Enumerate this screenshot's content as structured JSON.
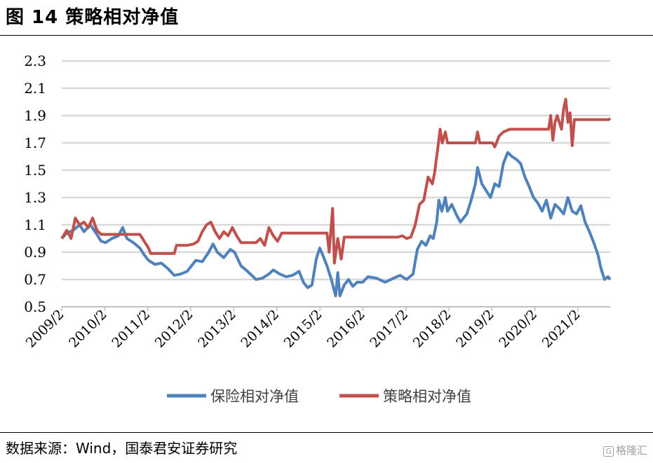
{
  "figure": {
    "title": "图 14  策略相对净值",
    "source": "数据来源：Wind，国泰君安证券研究",
    "watermark": "格隆汇",
    "watermark_mark": "G"
  },
  "chart_data": {
    "type": "line",
    "title": "",
    "xlabel": "",
    "ylabel": "",
    "ylim": [
      0.5,
      2.3
    ],
    "yticks": [
      0.5,
      0.7,
      0.9,
      1.1,
      1.3,
      1.5,
      1.7,
      1.9,
      2.1,
      2.3
    ],
    "xlim": [
      2009.083,
      2021.833
    ],
    "xticks": [
      {
        "x": 2009.083,
        "label": "2009/2"
      },
      {
        "x": 2010.083,
        "label": "2010/2"
      },
      {
        "x": 2011.083,
        "label": "2011/2"
      },
      {
        "x": 2012.083,
        "label": "2012/2"
      },
      {
        "x": 2013.083,
        "label": "2013/2"
      },
      {
        "x": 2014.083,
        "label": "2014/2"
      },
      {
        "x": 2015.083,
        "label": "2015/2"
      },
      {
        "x": 2016.083,
        "label": "2016/2"
      },
      {
        "x": 2017.083,
        "label": "2017/2"
      },
      {
        "x": 2018.083,
        "label": "2018/2"
      },
      {
        "x": 2019.083,
        "label": "2019/2"
      },
      {
        "x": 2020.083,
        "label": "2020/2"
      },
      {
        "x": 2021.083,
        "label": "2021/2"
      }
    ],
    "grid": true,
    "legend_position": "bottom-center",
    "series": [
      {
        "name": "保险相对净值",
        "color": "#4f81bd",
        "points": [
          [
            2009.083,
            1.0
          ],
          [
            2009.2,
            1.04
          ],
          [
            2009.35,
            1.06
          ],
          [
            2009.5,
            1.1
          ],
          [
            2009.6,
            1.05
          ],
          [
            2009.75,
            1.1
          ],
          [
            2009.9,
            1.03
          ],
          [
            2010.0,
            0.98
          ],
          [
            2010.1,
            0.97
          ],
          [
            2010.25,
            1.0
          ],
          [
            2010.4,
            1.02
          ],
          [
            2010.5,
            1.08
          ],
          [
            2010.6,
            1.0
          ],
          [
            2010.75,
            0.97
          ],
          [
            2010.9,
            0.93
          ],
          [
            2011.0,
            0.88
          ],
          [
            2011.1,
            0.84
          ],
          [
            2011.25,
            0.81
          ],
          [
            2011.4,
            0.82
          ],
          [
            2011.55,
            0.78
          ],
          [
            2011.7,
            0.73
          ],
          [
            2011.85,
            0.74
          ],
          [
            2012.0,
            0.76
          ],
          [
            2012.1,
            0.8
          ],
          [
            2012.2,
            0.84
          ],
          [
            2012.35,
            0.83
          ],
          [
            2012.5,
            0.9
          ],
          [
            2012.6,
            0.96
          ],
          [
            2012.7,
            0.9
          ],
          [
            2012.85,
            0.86
          ],
          [
            2013.0,
            0.92
          ],
          [
            2013.1,
            0.9
          ],
          [
            2013.25,
            0.8
          ],
          [
            2013.4,
            0.76
          ],
          [
            2013.5,
            0.73
          ],
          [
            2013.6,
            0.7
          ],
          [
            2013.75,
            0.71
          ],
          [
            2013.9,
            0.74
          ],
          [
            2014.0,
            0.77
          ],
          [
            2014.15,
            0.74
          ],
          [
            2014.3,
            0.72
          ],
          [
            2014.45,
            0.73
          ],
          [
            2014.6,
            0.76
          ],
          [
            2014.7,
            0.68
          ],
          [
            2014.8,
            0.64
          ],
          [
            2014.9,
            0.66
          ],
          [
            2015.0,
            0.85
          ],
          [
            2015.08,
            0.93
          ],
          [
            2015.15,
            0.88
          ],
          [
            2015.25,
            0.8
          ],
          [
            2015.35,
            0.7
          ],
          [
            2015.45,
            0.58
          ],
          [
            2015.5,
            0.75
          ],
          [
            2015.55,
            0.58
          ],
          [
            2015.65,
            0.66
          ],
          [
            2015.75,
            0.7
          ],
          [
            2015.85,
            0.65
          ],
          [
            2015.95,
            0.68
          ],
          [
            2016.08,
            0.68
          ],
          [
            2016.2,
            0.72
          ],
          [
            2016.4,
            0.71
          ],
          [
            2016.6,
            0.68
          ],
          [
            2016.8,
            0.71
          ],
          [
            2016.95,
            0.73
          ],
          [
            2017.1,
            0.7
          ],
          [
            2017.25,
            0.74
          ],
          [
            2017.35,
            0.92
          ],
          [
            2017.45,
            0.98
          ],
          [
            2017.55,
            0.95
          ],
          [
            2017.65,
            1.02
          ],
          [
            2017.72,
            1.0
          ],
          [
            2017.8,
            1.12
          ],
          [
            2017.85,
            1.28
          ],
          [
            2017.92,
            1.2
          ],
          [
            2018.0,
            1.3
          ],
          [
            2018.05,
            1.2
          ],
          [
            2018.15,
            1.25
          ],
          [
            2018.25,
            1.18
          ],
          [
            2018.35,
            1.12
          ],
          [
            2018.5,
            1.18
          ],
          [
            2018.6,
            1.28
          ],
          [
            2018.7,
            1.4
          ],
          [
            2018.75,
            1.52
          ],
          [
            2018.85,
            1.4
          ],
          [
            2018.95,
            1.35
          ],
          [
            2019.05,
            1.3
          ],
          [
            2019.15,
            1.4
          ],
          [
            2019.25,
            1.38
          ],
          [
            2019.35,
            1.55
          ],
          [
            2019.45,
            1.63
          ],
          [
            2019.55,
            1.6
          ],
          [
            2019.65,
            1.58
          ],
          [
            2019.75,
            1.55
          ],
          [
            2019.85,
            1.45
          ],
          [
            2019.95,
            1.38
          ],
          [
            2020.05,
            1.3
          ],
          [
            2020.15,
            1.26
          ],
          [
            2020.25,
            1.2
          ],
          [
            2020.35,
            1.28
          ],
          [
            2020.45,
            1.15
          ],
          [
            2020.55,
            1.25
          ],
          [
            2020.65,
            1.22
          ],
          [
            2020.75,
            1.18
          ],
          [
            2020.85,
            1.3
          ],
          [
            2020.95,
            1.2
          ],
          [
            2021.05,
            1.18
          ],
          [
            2021.15,
            1.24
          ],
          [
            2021.25,
            1.12
          ],
          [
            2021.35,
            1.05
          ],
          [
            2021.45,
            0.97
          ],
          [
            2021.55,
            0.88
          ],
          [
            2021.62,
            0.78
          ],
          [
            2021.7,
            0.7
          ],
          [
            2021.78,
            0.72
          ],
          [
            2021.833,
            0.7
          ]
        ]
      },
      {
        "name": "策略相对净值",
        "color": "#c0504d",
        "points": [
          [
            2009.083,
            1.0
          ],
          [
            2009.2,
            1.06
          ],
          [
            2009.3,
            1.0
          ],
          [
            2009.4,
            1.15
          ],
          [
            2009.5,
            1.1
          ],
          [
            2009.6,
            1.12
          ],
          [
            2009.7,
            1.08
          ],
          [
            2009.8,
            1.15
          ],
          [
            2009.9,
            1.06
          ],
          [
            2010.0,
            1.03
          ],
          [
            2010.3,
            1.03
          ],
          [
            2010.6,
            1.03
          ],
          [
            2010.9,
            1.03
          ],
          [
            2011.0,
            0.98
          ],
          [
            2011.1,
            0.93
          ],
          [
            2011.15,
            0.89
          ],
          [
            2011.5,
            0.89
          ],
          [
            2011.7,
            0.89
          ],
          [
            2011.75,
            0.95
          ],
          [
            2012.0,
            0.95
          ],
          [
            2012.15,
            0.96
          ],
          [
            2012.25,
            0.98
          ],
          [
            2012.35,
            1.05
          ],
          [
            2012.45,
            1.1
          ],
          [
            2012.55,
            1.12
          ],
          [
            2012.65,
            1.05
          ],
          [
            2012.75,
            1.0
          ],
          [
            2012.85,
            1.05
          ],
          [
            2012.95,
            1.02
          ],
          [
            2013.05,
            1.08
          ],
          [
            2013.15,
            1.02
          ],
          [
            2013.25,
            0.97
          ],
          [
            2013.4,
            0.97
          ],
          [
            2013.6,
            0.97
          ],
          [
            2013.7,
            1.0
          ],
          [
            2013.8,
            0.95
          ],
          [
            2013.9,
            1.08
          ],
          [
            2014.0,
            1.02
          ],
          [
            2014.1,
            0.98
          ],
          [
            2014.2,
            1.04
          ],
          [
            2014.5,
            1.04
          ],
          [
            2014.8,
            1.04
          ],
          [
            2015.0,
            1.04
          ],
          [
            2015.1,
            1.04
          ],
          [
            2015.25,
            1.04
          ],
          [
            2015.3,
            0.9
          ],
          [
            2015.38,
            1.22
          ],
          [
            2015.42,
            0.82
          ],
          [
            2015.5,
            1.0
          ],
          [
            2015.58,
            0.85
          ],
          [
            2015.65,
            1.01
          ],
          [
            2016.0,
            1.01
          ],
          [
            2016.5,
            1.01
          ],
          [
            2016.9,
            1.01
          ],
          [
            2017.0,
            1.02
          ],
          [
            2017.1,
            1.0
          ],
          [
            2017.2,
            1.01
          ],
          [
            2017.3,
            1.1
          ],
          [
            2017.4,
            1.25
          ],
          [
            2017.5,
            1.28
          ],
          [
            2017.6,
            1.45
          ],
          [
            2017.7,
            1.4
          ],
          [
            2017.75,
            1.48
          ],
          [
            2017.82,
            1.65
          ],
          [
            2017.88,
            1.8
          ],
          [
            2017.93,
            1.7
          ],
          [
            2018.0,
            1.78
          ],
          [
            2018.05,
            1.7
          ],
          [
            2018.5,
            1.7
          ],
          [
            2018.7,
            1.7
          ],
          [
            2018.75,
            1.78
          ],
          [
            2018.8,
            1.7
          ],
          [
            2019.1,
            1.7
          ],
          [
            2019.15,
            1.67
          ],
          [
            2019.25,
            1.75
          ],
          [
            2019.35,
            1.78
          ],
          [
            2019.5,
            1.8
          ],
          [
            2019.8,
            1.8
          ],
          [
            2020.0,
            1.8
          ],
          [
            2020.2,
            1.8
          ],
          [
            2020.4,
            1.8
          ],
          [
            2020.45,
            1.9
          ],
          [
            2020.5,
            1.72
          ],
          [
            2020.55,
            1.85
          ],
          [
            2020.6,
            1.9
          ],
          [
            2020.7,
            1.8
          ],
          [
            2020.75,
            1.95
          ],
          [
            2020.8,
            2.02
          ],
          [
            2020.85,
            1.85
          ],
          [
            2020.9,
            1.92
          ],
          [
            2020.95,
            1.68
          ],
          [
            2021.0,
            1.87
          ],
          [
            2021.3,
            1.87
          ],
          [
            2021.6,
            1.87
          ],
          [
            2021.8,
            1.87
          ],
          [
            2021.833,
            1.88
          ]
        ]
      }
    ]
  }
}
